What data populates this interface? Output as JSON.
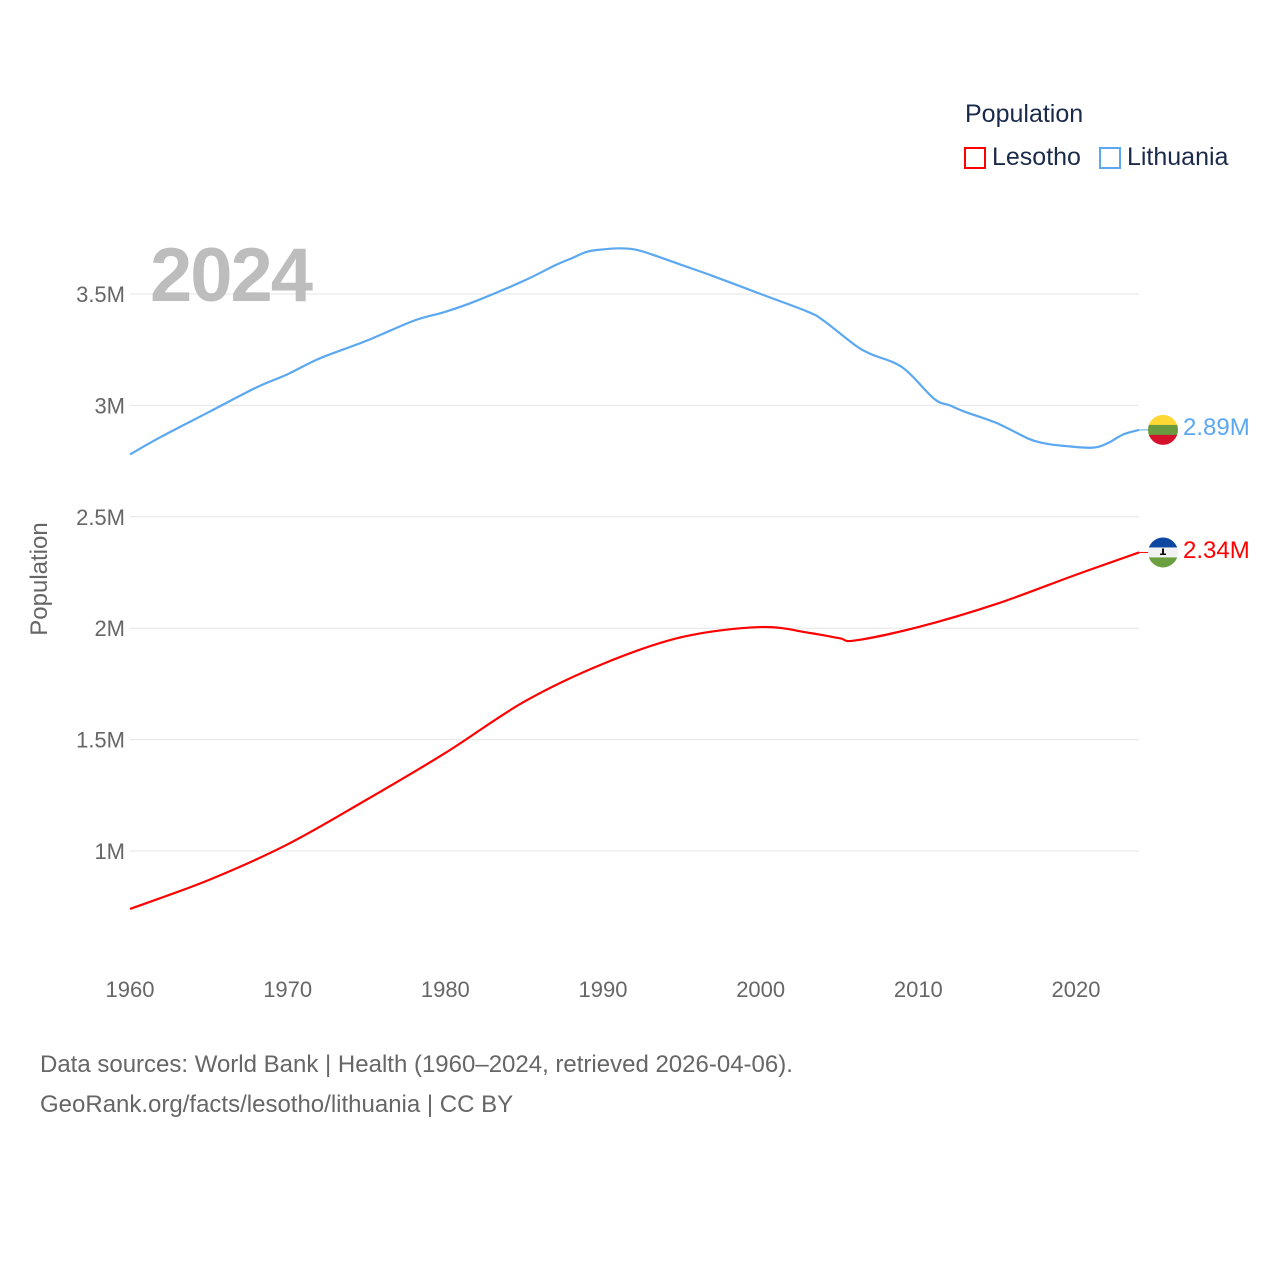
{
  "chart_data": {
    "type": "line",
    "title": "Population",
    "xlabel": "",
    "ylabel": "Population",
    "xlim": [
      1960,
      2024
    ],
    "ylim": [
      0.5,
      3.85
    ],
    "x_ticks": [
      1960,
      1970,
      1980,
      1990,
      2000,
      2010,
      2020
    ],
    "x_tick_labels": [
      "1960",
      "1970",
      "1980",
      "1990",
      "2000",
      "2010",
      "2020"
    ],
    "y_ticks": [
      1,
      1.5,
      2,
      2.5,
      3,
      3.5
    ],
    "y_tick_labels": [
      "1M",
      "1.5M",
      "2M",
      "2.5M",
      "3M",
      "3.5M"
    ],
    "grid": true,
    "legend_placement": "top-right",
    "series": [
      {
        "name": "Lesotho",
        "color": "#ff0000",
        "end_label": "2.34M",
        "flag": "lesotho-flag",
        "x": [
          1960,
          1965,
          1970,
          1975,
          1980,
          1985,
          1990,
          1995,
          2000,
          2003,
          2005,
          2006,
          2010,
          2015,
          2020,
          2024
        ],
        "values": [
          0.74,
          0.87,
          1.03,
          1.23,
          1.44,
          1.67,
          1.84,
          1.96,
          2.005,
          1.98,
          1.955,
          1.945,
          2.005,
          2.11,
          2.24,
          2.34
        ]
      },
      {
        "name": "Lithuania",
        "color": "#5ba8f0",
        "end_label": "2.89M",
        "flag": "lithuania-flag",
        "x": [
          1960,
          1962,
          1965,
          1968,
          1970,
          1972,
          1975,
          1978,
          1980,
          1982,
          1985,
          1987,
          1988,
          1989,
          1990,
          1991,
          1992,
          1993,
          1995,
          1997,
          2000,
          2003,
          2004,
          2006,
          2007,
          2009,
          2011,
          2012,
          2013,
          2015,
          2017,
          2018,
          2019,
          2021,
          2022,
          2023,
          2024
        ],
        "values": [
          2.78,
          2.86,
          2.97,
          3.08,
          3.14,
          3.21,
          3.29,
          3.38,
          3.42,
          3.47,
          3.56,
          3.63,
          3.66,
          3.69,
          3.7,
          3.705,
          3.7,
          3.68,
          3.63,
          3.58,
          3.5,
          3.42,
          3.38,
          3.27,
          3.23,
          3.17,
          3.03,
          3.0,
          2.97,
          2.92,
          2.85,
          2.83,
          2.82,
          2.81,
          2.83,
          2.87,
          2.89
        ]
      }
    ],
    "annotation_year": "2024"
  },
  "legend": {
    "title": "Population",
    "items": [
      "Lesotho",
      "Lithuania"
    ]
  },
  "footer": {
    "line1": "Data sources: World Bank | Health (1960–2024, retrieved 2026-04-06).",
    "line2": "GeoRank.org/facts/lesotho/lithuania | CC BY"
  }
}
